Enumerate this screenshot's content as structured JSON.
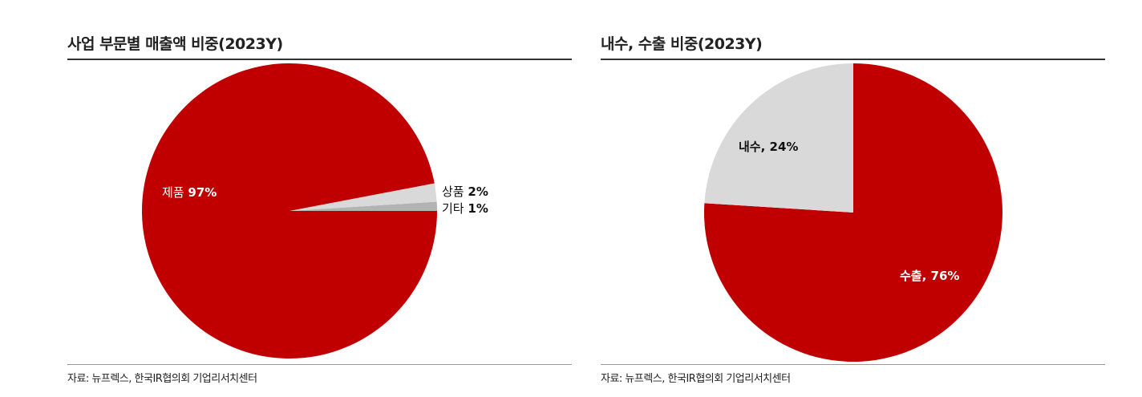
{
  "chart_data": [
    {
      "type": "pie",
      "title": "사업 부문별 매출액 비중(2023Y)",
      "slices": [
        {
          "label": "제품",
          "value": 97,
          "display": "97%",
          "color": "#c00000"
        },
        {
          "label": "상품",
          "value": 2,
          "display": "2%",
          "color": "#d9d9d9"
        },
        {
          "label": "기타",
          "value": 1,
          "display": "1%",
          "color": "#b3b3b3"
        }
      ],
      "source": "자료: 뉴프렉스, 한국IR협의회 기업리서치센터"
    },
    {
      "type": "pie",
      "title": "내수, 수출 비중(2023Y)",
      "slices": [
        {
          "label": "수출",
          "value": 76,
          "display": "76%",
          "color": "#c00000"
        },
        {
          "label": "내수",
          "value": 24,
          "display": "24%",
          "color": "#d9d9d9"
        }
      ],
      "source": "자료: 뉴프렉스, 한국IR협의회 기업리서치센터"
    }
  ]
}
